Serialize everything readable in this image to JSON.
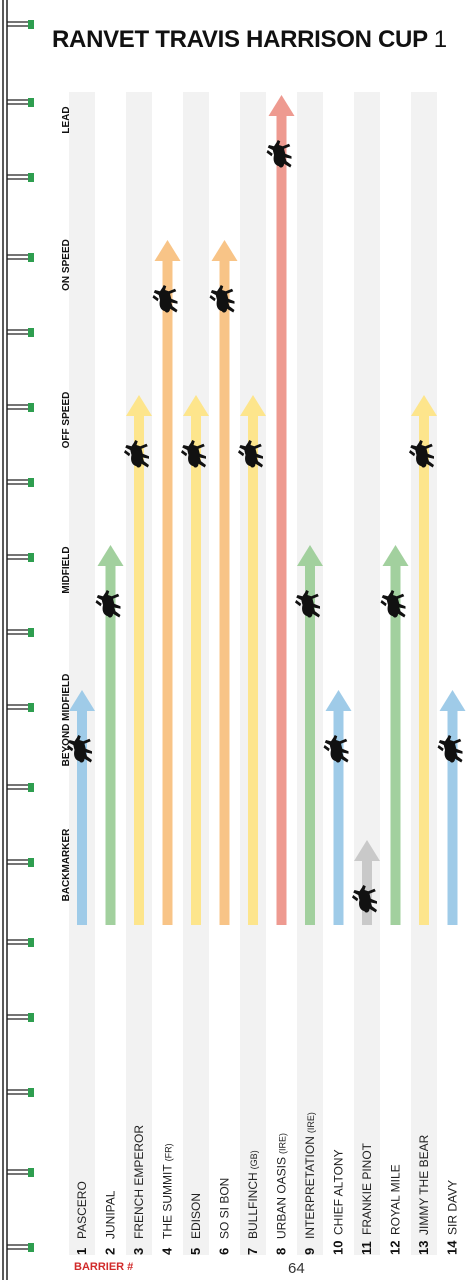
{
  "title": "RANVET TRAVIS HARRISON CUP",
  "title_suffix": "1",
  "page_number": "64",
  "barrier_label": "BARRIER #",
  "colors": {
    "Backmarker": "#c9c9c9",
    "Beyond Midfield": "#9fcbe8",
    "Midfield": "#a2d09e",
    "Off Speed": "#fde58c",
    "On Speed": "#f8c487",
    "Lead": "#ee9a90",
    "stripe": "#f2f2f2",
    "fence_post": "#2e9e4f"
  },
  "chart_data": {
    "type": "bar",
    "categories": [
      "BACKMARKER",
      "BEYOND MIDFIELD",
      "MIDFIELD",
      "OFF SPEED",
      "ON SPEED",
      "LEAD"
    ],
    "runners": [
      {
        "barrier": "1",
        "name": "PASCERO",
        "suffix": "",
        "position": "BEYOND MIDFIELD",
        "level": 1,
        "color": "#9fcbe8"
      },
      {
        "barrier": "2",
        "name": "JUNIPAL",
        "suffix": "",
        "position": "MIDFIELD",
        "level": 2,
        "color": "#a2d09e"
      },
      {
        "barrier": "3",
        "name": "FRENCH EMPEROR",
        "suffix": "",
        "position": "OFF SPEED",
        "level": 3,
        "color": "#fde58c"
      },
      {
        "barrier": "4",
        "name": "THE SUMMIT",
        "suffix": "(FR)",
        "position": "ON SPEED",
        "level": 4,
        "color": "#f8c487"
      },
      {
        "barrier": "5",
        "name": "EDISON",
        "suffix": "",
        "position": "OFF SPEED",
        "level": 3,
        "color": "#fde58c"
      },
      {
        "barrier": "6",
        "name": "SO SI BON",
        "suffix": "",
        "position": "ON SPEED",
        "level": 4,
        "color": "#f8c487"
      },
      {
        "barrier": "7",
        "name": "BULLFINCH",
        "suffix": "(GB)",
        "position": "OFF SPEED",
        "level": 3,
        "color": "#fde58c"
      },
      {
        "barrier": "8",
        "name": "URBAN OASIS",
        "suffix": "(IRE)",
        "position": "LEAD",
        "level": 5,
        "color": "#ee9a90"
      },
      {
        "barrier": "9",
        "name": "INTERPRETATION",
        "suffix": "(IRE)",
        "position": "MIDFIELD",
        "level": 2,
        "color": "#a2d09e"
      },
      {
        "barrier": "10",
        "name": "CHIEF ALTONY",
        "suffix": "",
        "position": "BEYOND MIDFIELD",
        "level": 1,
        "color": "#9fcbe8"
      },
      {
        "barrier": "11",
        "name": "FRANKIE PINOT",
        "suffix": "",
        "position": "BACKMARKER",
        "level": 0,
        "color": "#c9c9c9"
      },
      {
        "barrier": "12",
        "name": "ROYAL MILE",
        "suffix": "",
        "position": "MIDFIELD",
        "level": 2,
        "color": "#a2d09e"
      },
      {
        "barrier": "13",
        "name": "JIMMY THE BEAR",
        "suffix": "",
        "position": "OFF SPEED",
        "level": 3,
        "color": "#fde58c"
      },
      {
        "barrier": "14",
        "name": "SIR DAVY",
        "suffix": "",
        "position": "BEYOND MIDFIELD",
        "level": 1,
        "color": "#9fcbe8"
      }
    ],
    "xlabel": "BARRIER #",
    "ylabel": "",
    "grid": true
  }
}
